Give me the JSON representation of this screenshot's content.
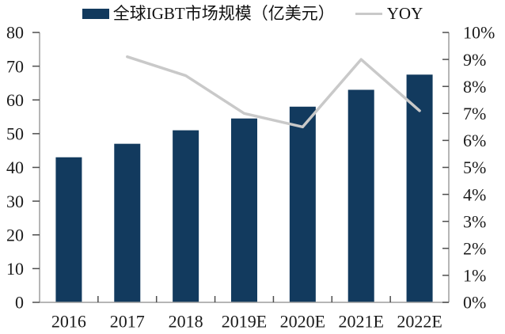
{
  "legend": {
    "bar_label": "全球IGBT市场规模（亿美元）",
    "line_label": "YOY"
  },
  "chart_data": {
    "type": "bar+line combo",
    "title": "",
    "categories": [
      "2016",
      "2017",
      "2018",
      "2019E",
      "2020E",
      "2021E",
      "2022E"
    ],
    "series": [
      {
        "name": "全球IGBT市场规模（亿美元）",
        "type": "bar",
        "axis": "left",
        "values": [
          43,
          47,
          51,
          54.5,
          58,
          63,
          67.5
        ]
      },
      {
        "name": "YOY",
        "type": "line",
        "axis": "right",
        "unit": "%",
        "values": [
          null,
          9.1,
          8.4,
          7.0,
          6.5,
          9.0,
          7.1
        ]
      }
    ],
    "left_axis": {
      "min": 0,
      "max": 80,
      "step": 10,
      "ticks": [
        "0",
        "10",
        "20",
        "30",
        "40",
        "50",
        "60",
        "70",
        "80"
      ]
    },
    "right_axis": {
      "min": 0,
      "max": 10,
      "step": 1,
      "unit": "%",
      "ticks": [
        "0%",
        "1%",
        "2%",
        "3%",
        "4%",
        "5%",
        "6%",
        "7%",
        "8%",
        "9%",
        "10%"
      ]
    },
    "legend_position": "top-center",
    "grid": false,
    "colors": {
      "bar": "#123a5e",
      "line": "#c9c9c9",
      "axis": "#9e9e9e",
      "tick": "#4d4d4d",
      "text": "#1a1a1a"
    }
  }
}
